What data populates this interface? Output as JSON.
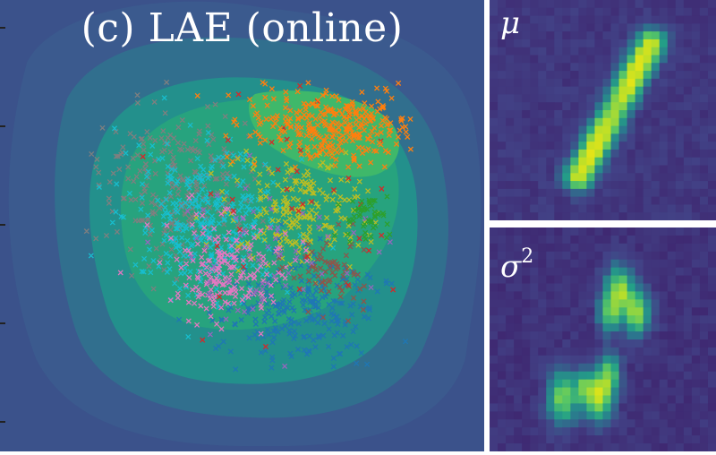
{
  "main_panel": {
    "title": "(c) LAE (online)"
  },
  "mean_panel": {
    "label": "μ"
  },
  "variance_panel": {
    "label_base": "σ",
    "label_exp": "2"
  },
  "colors": {
    "background_outer": "#3b528b",
    "contour_levels": [
      "#3b5a8e",
      "#316f8e",
      "#23908c",
      "#27a37e",
      "#3fb86a"
    ],
    "series": [
      "#ff7f0e",
      "#1f77b4",
      "#e377c2",
      "#17becf",
      "#7f7f7f",
      "#bcbd22",
      "#2ca02c",
      "#d62728",
      "#8c564b",
      "#9467bd"
    ],
    "image_low": "#3d1a66",
    "image_high": "#e3e418"
  }
}
